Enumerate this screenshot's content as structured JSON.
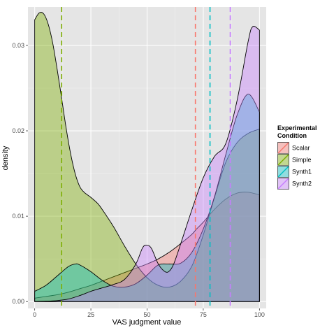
{
  "chart_data": {
    "type": "area",
    "xlabel": "VAS judgment value",
    "ylabel": "density",
    "xlim": [
      -3,
      103
    ],
    "ylim": [
      -0.0008,
      0.0345
    ],
    "x_ticks": [
      0,
      25,
      50,
      75,
      100
    ],
    "x_tick_labels": [
      "0",
      "25",
      "50",
      "75",
      "100"
    ],
    "y_ticks": [
      0.0,
      0.01,
      0.02,
      0.03
    ],
    "y_tick_labels": [
      "0.00",
      "0.01",
      "0.02",
      "0.03"
    ],
    "grid": true,
    "legend": {
      "title_lines": [
        "Experimental",
        "Condition"
      ],
      "position": "right"
    },
    "series": [
      {
        "name": "Scalar",
        "color": "#f8766d",
        "mean": 71.5,
        "x": [
          0,
          5,
          10,
          15,
          20,
          25,
          30,
          35,
          40,
          45,
          50,
          55,
          60,
          65,
          70,
          72,
          75,
          80,
          85,
          90,
          95,
          100
        ],
        "y": [
          0.0004,
          0.0006,
          0.0008,
          0.0011,
          0.0015,
          0.0019,
          0.0024,
          0.0029,
          0.0034,
          0.0039,
          0.0044,
          0.005,
          0.0058,
          0.0068,
          0.0079,
          0.0085,
          0.0093,
          0.0108,
          0.012,
          0.0127,
          0.0128,
          0.0125
        ]
      },
      {
        "name": "Simple",
        "color": "#7cae00",
        "mean": 12,
        "x": [
          0,
          2,
          4,
          6,
          8,
          10,
          12,
          14,
          16,
          18,
          20,
          22,
          25,
          28,
          30,
          35,
          40,
          45,
          50,
          55,
          60,
          65,
          70,
          75,
          80,
          85,
          90,
          95,
          100
        ],
        "y": [
          0.033,
          0.0338,
          0.0337,
          0.0325,
          0.0303,
          0.0272,
          0.0238,
          0.0203,
          0.0173,
          0.015,
          0.0135,
          0.0128,
          0.0122,
          0.0115,
          0.0108,
          0.0088,
          0.0065,
          0.0044,
          0.0028,
          0.0019,
          0.0017,
          0.0024,
          0.0042,
          0.0078,
          0.0122,
          0.0163,
          0.0186,
          0.0197,
          0.0202
        ]
      },
      {
        "name": "Synth1",
        "color": "#00bfc4",
        "mean": 78,
        "x": [
          0,
          5,
          10,
          15,
          18,
          20,
          25,
          30,
          35,
          40,
          45,
          50,
          55,
          60,
          65,
          70,
          75,
          80,
          85,
          90,
          95,
          100
        ],
        "y": [
          0.0012,
          0.0019,
          0.003,
          0.0041,
          0.0044,
          0.0043,
          0.0035,
          0.0025,
          0.0018,
          0.0017,
          0.0021,
          0.0031,
          0.0043,
          0.0044,
          0.0045,
          0.0058,
          0.0085,
          0.0123,
          0.0172,
          0.0218,
          0.0243,
          0.0222
        ]
      },
      {
        "name": "Synth2",
        "color": "#c77cff",
        "mean": 87,
        "x": [
          0,
          5,
          10,
          15,
          20,
          25,
          30,
          35,
          40,
          45,
          48,
          50,
          52,
          55,
          58,
          60,
          62,
          65,
          70,
          75,
          80,
          85,
          90,
          95,
          97,
          100
        ],
        "y": [
          2e-05,
          5e-05,
          0.00012,
          0.0003,
          0.0007,
          0.0012,
          0.0016,
          0.002,
          0.0026,
          0.0044,
          0.0063,
          0.0066,
          0.0062,
          0.0044,
          0.0035,
          0.0036,
          0.0045,
          0.0068,
          0.0108,
          0.0145,
          0.017,
          0.0185,
          0.0235,
          0.0305,
          0.0322,
          0.0318
        ]
      }
    ]
  }
}
